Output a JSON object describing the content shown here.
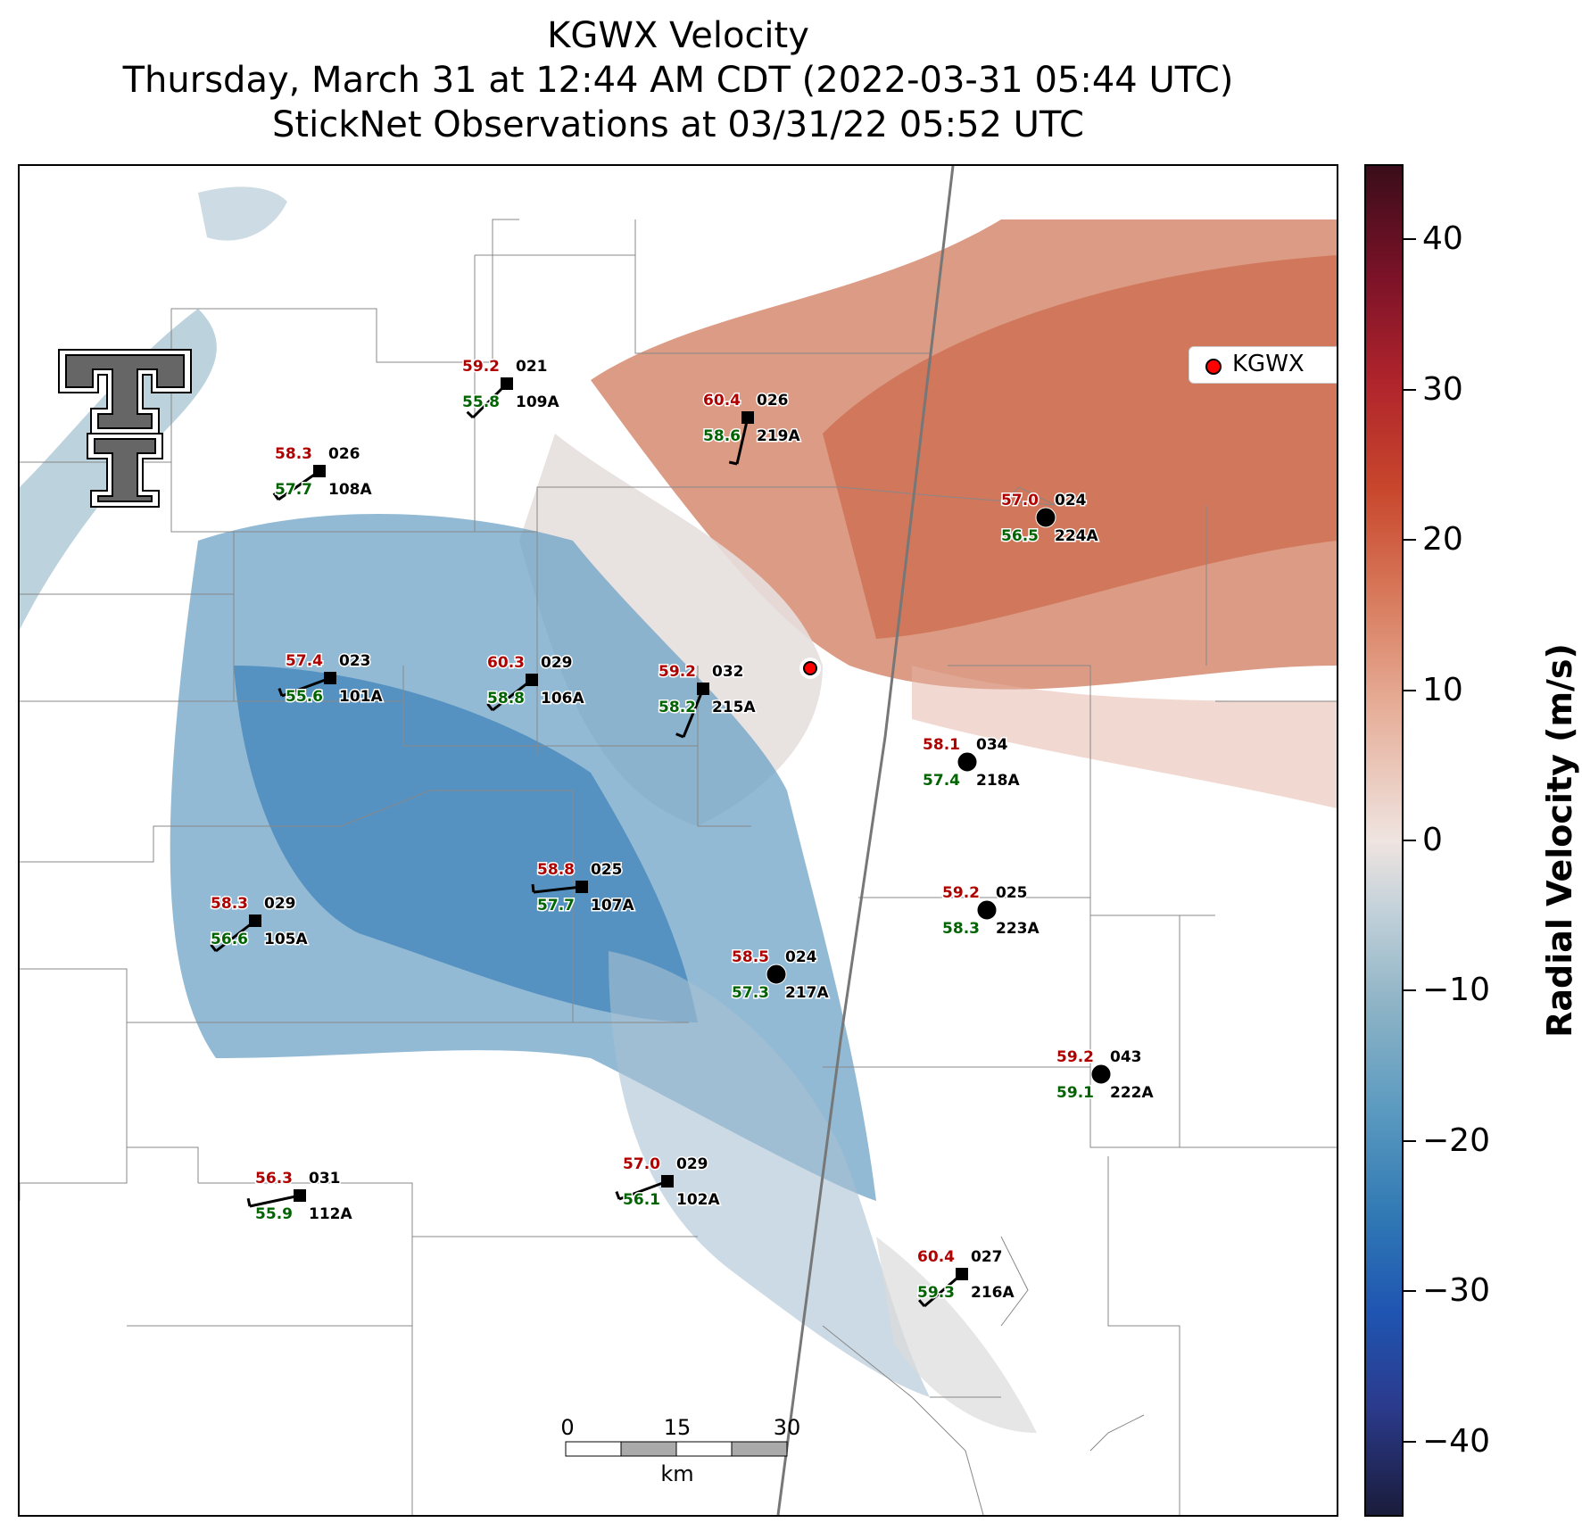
{
  "title": {
    "line1": "KGWX Velocity",
    "line2": "Thursday, March 31 at 12:44 AM CDT (2022-03-31 05:44 UTC)",
    "line3": "StickNet Observations at 03/31/22 05:52 UTC"
  },
  "legend": {
    "label": "KGWX",
    "marker_color": "#ff0000"
  },
  "colorbar": {
    "label": "Radial Velocity (m/s)",
    "ticks": [
      "40",
      "30",
      "20",
      "10",
      "0",
      "−10",
      "−20",
      "−30",
      "−40"
    ],
    "range": [
      -45,
      45
    ]
  },
  "scale_bar": {
    "labels": [
      "0",
      "15",
      "30"
    ],
    "unit": "km"
  },
  "logo": {
    "name": "texas-tech-double-t-logo"
  },
  "colors": {
    "positive_velocity": "#c8472c",
    "negative_velocity": "#2f78b4",
    "temperature_text": "#b00000",
    "dewpoint_text": "#006400"
  },
  "stations": [
    {
      "id": "109A",
      "temp": "59.2",
      "dew": "55.8",
      "dir": "021",
      "marker": "square"
    },
    {
      "id": "219A",
      "temp": "60.4",
      "dew": "58.6",
      "dir": "026",
      "marker": "square"
    },
    {
      "id": "108A",
      "temp": "58.3",
      "dew": "57.7",
      "dir": "026",
      "marker": "square"
    },
    {
      "id": "224A",
      "temp": "57.0",
      "dew": "56.5",
      "dir": "024",
      "marker": "circle"
    },
    {
      "id": "101A",
      "temp": "57.4",
      "dew": "55.6",
      "dir": "023",
      "marker": "square"
    },
    {
      "id": "106A",
      "temp": "60.3",
      "dew": "58.8",
      "dir": "029",
      "marker": "square"
    },
    {
      "id": "215A",
      "temp": "59.2",
      "dew": "58.2",
      "dir": "032",
      "marker": "square"
    },
    {
      "id": "218A",
      "temp": "58.1",
      "dew": "57.4",
      "dir": "034",
      "marker": "circle"
    },
    {
      "id": "107A",
      "temp": "58.8",
      "dew": "57.7",
      "dir": "025",
      "marker": "square"
    },
    {
      "id": "223A",
      "temp": "59.2",
      "dew": "58.3",
      "dir": "025",
      "marker": "circle"
    },
    {
      "id": "105A",
      "temp": "58.3",
      "dew": "56.6",
      "dir": "029",
      "marker": "square"
    },
    {
      "id": "217A",
      "temp": "58.5",
      "dew": "57.3",
      "dir": "024",
      "marker": "circle"
    },
    {
      "id": "222A",
      "temp": "59.2",
      "dew": "59.1",
      "dir": "043",
      "marker": "circle"
    },
    {
      "id": "102A",
      "temp": "57.0",
      "dew": "56.1",
      "dir": "029",
      "marker": "square"
    },
    {
      "id": "112A",
      "temp": "56.3",
      "dew": "55.9",
      "dir": "031",
      "marker": "square"
    },
    {
      "id": "216A",
      "temp": "60.4",
      "dew": "59.3",
      "dir": "027",
      "marker": "square"
    }
  ]
}
